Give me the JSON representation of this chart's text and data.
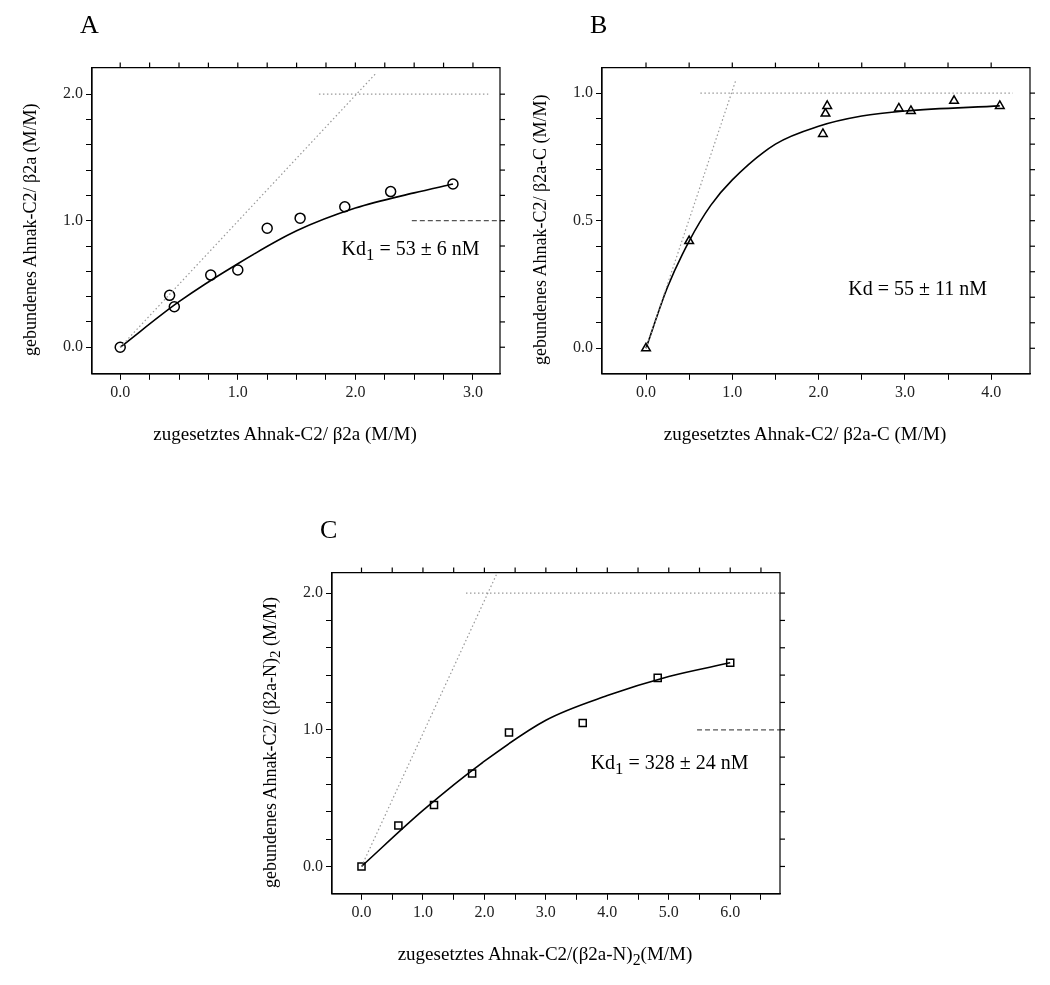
{
  "chart_data": [
    {
      "type": "scatter",
      "title": "A",
      "xlabel": "zugesetztes Ahnak-C2/ β2a (M/M)",
      "ylabel": "gebundenes Ahnak-C2/ β2a (M/M)",
      "xlim": [
        -0.24,
        3.23
      ],
      "ylim": [
        -0.21,
        2.21
      ],
      "xticks": [
        {
          "value": 0,
          "label": "0.0"
        },
        {
          "value": 0.25,
          "label": null
        },
        {
          "value": 0.5,
          "label": null
        },
        {
          "value": 0.75,
          "label": null
        },
        {
          "value": 1,
          "label": "1.0"
        },
        {
          "value": 1.25,
          "label": null
        },
        {
          "value": 1.5,
          "label": null
        },
        {
          "value": 1.75,
          "label": null
        },
        {
          "value": 2,
          "label": "2.0"
        },
        {
          "value": 2.25,
          "label": null
        },
        {
          "value": 2.5,
          "label": null
        },
        {
          "value": 2.75,
          "label": null
        },
        {
          "value": 3,
          "label": "3.0"
        }
      ],
      "yticks": [
        {
          "value": 0,
          "label": "0.0"
        },
        {
          "value": 0.2,
          "label": null
        },
        {
          "value": 0.4,
          "label": null
        },
        {
          "value": 0.6,
          "label": null
        },
        {
          "value": 0.8,
          "label": null
        },
        {
          "value": 1,
          "label": "1.0"
        },
        {
          "value": 1.2,
          "label": null
        },
        {
          "value": 1.4,
          "label": null
        },
        {
          "value": 1.6,
          "label": null
        },
        {
          "value": 1.8,
          "label": null
        },
        {
          "value": 2,
          "label": "2.0"
        }
      ],
      "annotations": [
        "Kd$_{1}$ = 53 ± 6 nM"
      ],
      "series": [
        {
          "type": "line",
          "color": "#999999",
          "marker": "none",
          "line_style": "dotted",
          "x": [
            0,
            2.17
          ],
          "values": [
            0,
            2.16
          ]
        },
        {
          "type": "line",
          "color": "#999999",
          "marker": "none",
          "line_style": "dotted",
          "x": [
            1.69,
            3.13
          ],
          "values": [
            2,
            2
          ]
        },
        {
          "type": "line",
          "color": "#555555",
          "marker": "none",
          "line_style": "dashed",
          "x": [
            2.48,
            3.23
          ],
          "values": [
            1,
            1
          ]
        },
        {
          "type": "line",
          "color": "#000000",
          "marker": "none",
          "line_style": "solid",
          "x": [
            0,
            0.5,
            1.0,
            1.5,
            2.0,
            2.5,
            2.83
          ],
          "values": [
            0,
            0.36,
            0.66,
            0.92,
            1.1,
            1.22,
            1.29
          ]
        },
        {
          "color": "#000000",
          "marker": "circle",
          "x": [
            0,
            0.42,
            0.46,
            0.77,
            1.0,
            1.25,
            1.53,
            1.91,
            2.3,
            2.83
          ],
          "values": [
            0,
            0.41,
            0.32,
            0.57,
            0.61,
            0.94,
            1.02,
            1.11,
            1.23,
            1.29
          ]
        }
      ]
    },
    {
      "type": "scatter",
      "title": "B",
      "xlabel": "zugesetztes Ahnak-C2/ β2a-C (M/M)",
      "ylabel": "gebundenes Ahnak-C2/ β2a-C (M/M)",
      "xlim": [
        -0.51,
        4.45
      ],
      "ylim": [
        -0.1,
        1.1
      ],
      "xticks": [
        {
          "value": 0,
          "label": "0.0"
        },
        {
          "value": 0.5,
          "label": null
        },
        {
          "value": 1,
          "label": "1.0"
        },
        {
          "value": 1.5,
          "label": null
        },
        {
          "value": 2,
          "label": "2.0"
        },
        {
          "value": 2.5,
          "label": null
        },
        {
          "value": 3,
          "label": "3.0"
        },
        {
          "value": 3.5,
          "label": null
        },
        {
          "value": 4,
          "label": "4.0"
        }
      ],
      "yticks": [
        {
          "value": 0,
          "label": "0.0"
        },
        {
          "value": 0.1,
          "label": null
        },
        {
          "value": 0.2,
          "label": null
        },
        {
          "value": 0.3,
          "label": null
        },
        {
          "value": 0.4,
          "label": null
        },
        {
          "value": 0.5,
          "label": "0.5"
        },
        {
          "value": 0.6,
          "label": null
        },
        {
          "value": 0.7,
          "label": null
        },
        {
          "value": 0.8,
          "label": null
        },
        {
          "value": 0.9,
          "label": null
        },
        {
          "value": 1,
          "label": "1.0"
        }
      ],
      "annotations": [
        "Kd = 55 ± 11 nM"
      ],
      "series": [
        {
          "type": "line",
          "color": "#999999",
          "marker": "none",
          "line_style": "dotted",
          "x": [
            0,
            1.04
          ],
          "values": [
            0,
            1.05
          ]
        },
        {
          "type": "line",
          "color": "#999999",
          "marker": "none",
          "line_style": "dotted",
          "x": [
            0.63,
            4.25
          ],
          "values": [
            1,
            1
          ]
        },
        {
          "type": "line",
          "color": "#000000",
          "marker": "none",
          "line_style": "solid",
          "x": [
            0,
            0.25,
            0.5,
            0.75,
            1.0,
            1.5,
            2.0,
            2.5,
            3.0,
            4.1
          ],
          "values": [
            0,
            0.24,
            0.42,
            0.56,
            0.66,
            0.8,
            0.87,
            0.91,
            0.93,
            0.95
          ]
        },
        {
          "color": "#000000",
          "marker": "triangle",
          "x": [
            0,
            0.5,
            2.05,
            2.08,
            2.1,
            2.93,
            3.07,
            3.57,
            4.1
          ],
          "values": [
            0,
            0.42,
            0.84,
            0.92,
            0.95,
            0.94,
            0.93,
            0.97,
            0.95
          ]
        }
      ]
    },
    {
      "type": "scatter",
      "title": "C",
      "xlabel": "zugesetztes Ahnak-C2/(β2a-N)$_{2}$(M/M)",
      "ylabel": "gebundenes Ahnak-C2/ (β2a-N)$_{2}$ (M/M)",
      "xlim": [
        -0.48,
        6.81
      ],
      "ylim": [
        -0.2,
        2.15
      ],
      "xticks": [
        {
          "value": 0,
          "label": "0.0"
        },
        {
          "value": 0.5,
          "label": null
        },
        {
          "value": 1,
          "label": "1.0"
        },
        {
          "value": 1.5,
          "label": null
        },
        {
          "value": 2,
          "label": "2.0"
        },
        {
          "value": 2.5,
          "label": null
        },
        {
          "value": 3,
          "label": "3.0"
        },
        {
          "value": 3.5,
          "label": null
        },
        {
          "value": 4,
          "label": "4.0"
        },
        {
          "value": 4.5,
          "label": null
        },
        {
          "value": 5,
          "label": "5.0"
        },
        {
          "value": 5.5,
          "label": null
        },
        {
          "value": 6,
          "label": "6.0"
        },
        {
          "value": 6.5,
          "label": null
        }
      ],
      "yticks": [
        {
          "value": 0,
          "label": "0.0"
        },
        {
          "value": 0.2,
          "label": null
        },
        {
          "value": 0.4,
          "label": null
        },
        {
          "value": 0.6,
          "label": null
        },
        {
          "value": 0.8,
          "label": null
        },
        {
          "value": 1,
          "label": "1.0"
        },
        {
          "value": 1.2,
          "label": null
        },
        {
          "value": 1.4,
          "label": null
        },
        {
          "value": 1.6,
          "label": null
        },
        {
          "value": 1.8,
          "label": null
        },
        {
          "value": 2,
          "label": "2.0"
        }
      ],
      "annotations": [
        "Kd$_{1}$ = 328 ± 24 nM"
      ],
      "series": [
        {
          "type": "line",
          "color": "#999999",
          "marker": "none",
          "line_style": "dotted",
          "x": [
            0,
            2.2
          ],
          "values": [
            0,
            2.14
          ]
        },
        {
          "type": "line",
          "color": "#999999",
          "marker": "none",
          "line_style": "dotted",
          "x": [
            1.7,
            6.81
          ],
          "values": [
            2,
            2
          ]
        },
        {
          "type": "line",
          "color": "#555555",
          "marker": "none",
          "line_style": "dashed",
          "x": [
            5.46,
            6.81
          ],
          "values": [
            1,
            1
          ]
        },
        {
          "type": "line",
          "color": "#000000",
          "marker": "none",
          "line_style": "solid",
          "x": [
            0,
            1,
            2,
            3,
            4,
            5,
            6
          ],
          "values": [
            0,
            0.41,
            0.77,
            1.07,
            1.25,
            1.39,
            1.49
          ]
        },
        {
          "color": "#000000",
          "marker": "square",
          "x": [
            0,
            0.6,
            1.18,
            1.8,
            2.4,
            3.6,
            4.82,
            6.0
          ],
          "values": [
            0,
            0.3,
            0.45,
            0.68,
            0.98,
            1.05,
            1.38,
            1.49
          ]
        }
      ]
    }
  ]
}
